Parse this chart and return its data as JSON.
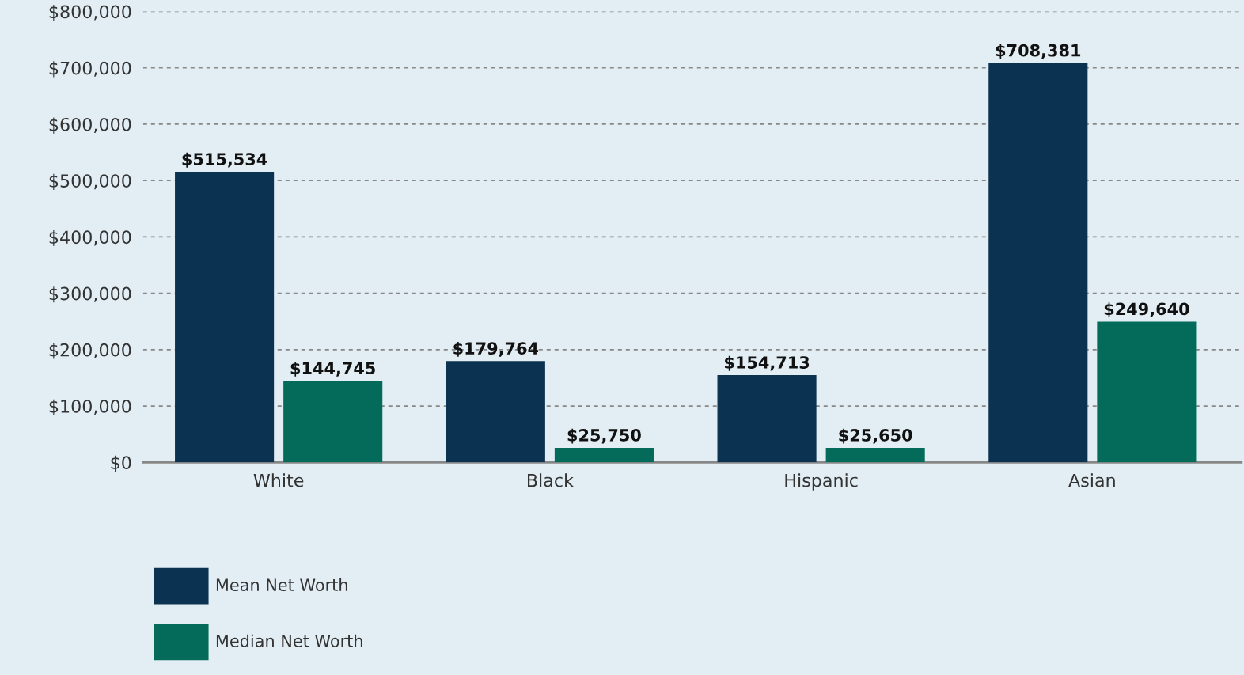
{
  "chart_data": {
    "type": "bar",
    "categories": [
      "White",
      "Black",
      "Hispanic",
      "Asian"
    ],
    "series": [
      {
        "name": "Mean Net Worth",
        "color": "#0b3250",
        "values": [
          515534,
          179764,
          154713,
          708381
        ],
        "value_labels": [
          "$515,534",
          "$179,764",
          "$154,713",
          "$708,381"
        ]
      },
      {
        "name": "Median Net Worth",
        "color": "#046b5a",
        "values": [
          144745,
          25750,
          25650,
          249640
        ],
        "value_labels": [
          "$144,745",
          "$25,750",
          "$25,650",
          "$249,640"
        ]
      }
    ],
    "ylim": [
      0,
      800000
    ],
    "yticks": [
      {
        "value": 0,
        "label": "$0"
      },
      {
        "value": 100000,
        "label": "$100,000"
      },
      {
        "value": 200000,
        "label": "$200,000"
      },
      {
        "value": 300000,
        "label": "$300,000"
      },
      {
        "value": 400000,
        "label": "$400,000"
      },
      {
        "value": 500000,
        "label": "$500,000"
      },
      {
        "value": 600000,
        "label": "$600,000"
      },
      {
        "value": 700000,
        "label": "$700,000"
      },
      {
        "value": 800000,
        "label": "$800,000"
      }
    ],
    "grid": "y",
    "legend": "bottom left"
  }
}
